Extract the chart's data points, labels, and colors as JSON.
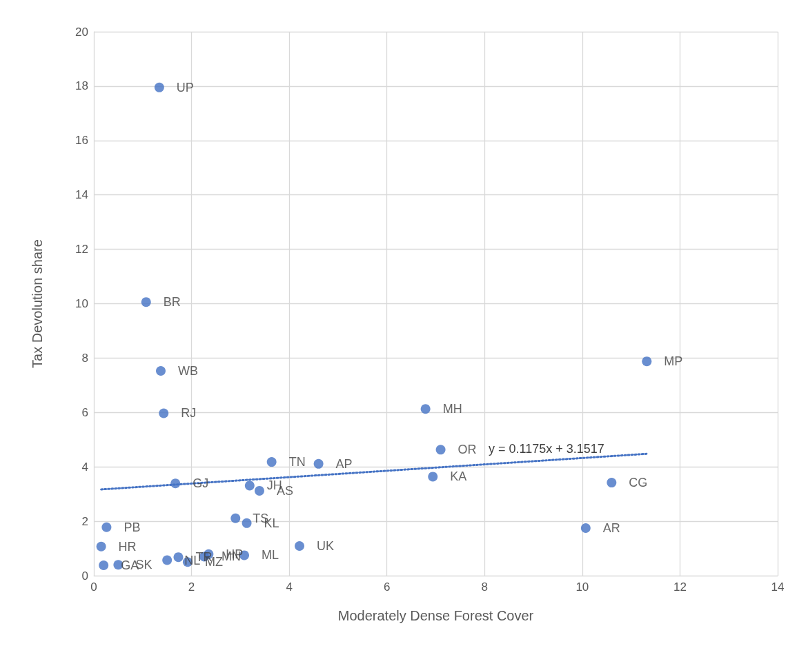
{
  "chart_data": {
    "type": "scatter",
    "xlabel": "Moderately Dense Forest Cover",
    "ylabel": "Tax Devolution share",
    "xlim": [
      0,
      14
    ],
    "xticks": [
      0,
      2,
      4,
      6,
      8,
      10,
      12,
      14
    ],
    "ylim": [
      0,
      20
    ],
    "yticks": [
      0,
      2,
      4,
      6,
      8,
      10,
      12,
      14,
      16,
      18,
      20
    ],
    "grid": true,
    "marker": "circle",
    "series": [
      {
        "color": "#4472c4",
        "x": [
          1.34,
          1.07,
          1.37,
          1.43,
          11.32,
          6.79,
          7.1,
          3.64,
          4.6,
          6.94,
          10.6,
          1.67,
          3.19,
          3.39,
          2.9,
          3.13,
          0.26,
          10.07,
          0.15,
          4.21,
          0.2,
          0.5,
          1.5,
          1.73,
          1.92,
          2.26,
          2.35,
          3.08
        ],
        "values": [
          17.95,
          10.06,
          7.53,
          5.97,
          7.88,
          6.13,
          4.63,
          4.18,
          4.11,
          3.64,
          3.42,
          3.39,
          3.31,
          3.12,
          2.11,
          1.93,
          1.78,
          1.75,
          1.07,
          1.09,
          0.38,
          0.4,
          0.57,
          0.68,
          0.5,
          0.7,
          0.79,
          0.75
        ],
        "value_labels": [
          "UP",
          "BR",
          "WB",
          "RJ",
          "MP",
          "MH",
          "OR",
          "TN",
          "AP",
          "KA",
          "CG",
          "GJ",
          "JH",
          "AS",
          "TS",
          "KL",
          "PB",
          "AR",
          "HR",
          "UK",
          "GA",
          "SK",
          "NL",
          "TR",
          "MZ",
          "MN",
          "HP",
          "ML"
        ]
      },
      {
        "type": "line",
        "color": "#4472c4",
        "line_style": "dotted",
        "marker": "none",
        "x": [
          0.15,
          11.32
        ],
        "values": [
          3.17,
          4.48
        ]
      }
    ],
    "annotations": [
      "y = 0.1175x + 3.1517"
    ]
  }
}
